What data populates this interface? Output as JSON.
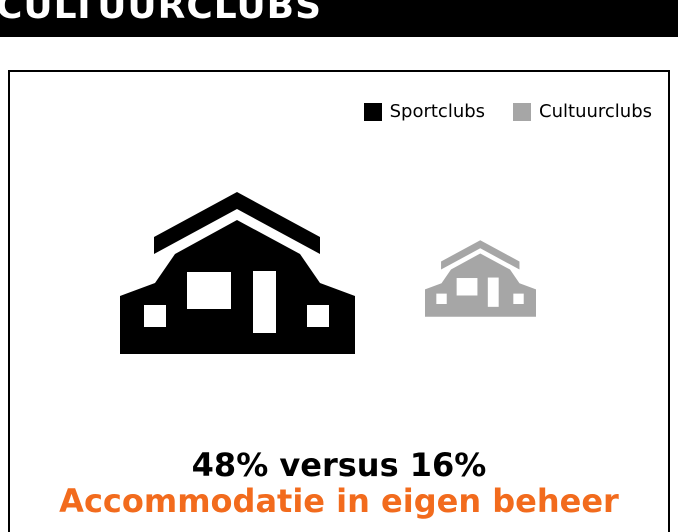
{
  "header": {
    "title": "CULTUURCLUBS"
  },
  "legend": {
    "items": [
      {
        "label": "Sportclubs",
        "color": "#000000"
      },
      {
        "label": "Cultuurclubs",
        "color": "#a6a6a6"
      }
    ]
  },
  "caption": {
    "comparison": "48% versus 16%",
    "subject": "Accommodatie in eigen beheer"
  },
  "colors": {
    "accent": "#f26b1d",
    "sport": "#000000",
    "cultuur": "#a6a6a6"
  },
  "chart_data": {
    "type": "bar",
    "categories": [
      "Sportclubs",
      "Cultuurclubs"
    ],
    "values": [
      48,
      16
    ],
    "unit": "%",
    "title": "Accommodatie in eigen beheer",
    "xlabel": "",
    "ylabel": "",
    "legend_position": "top-right"
  }
}
